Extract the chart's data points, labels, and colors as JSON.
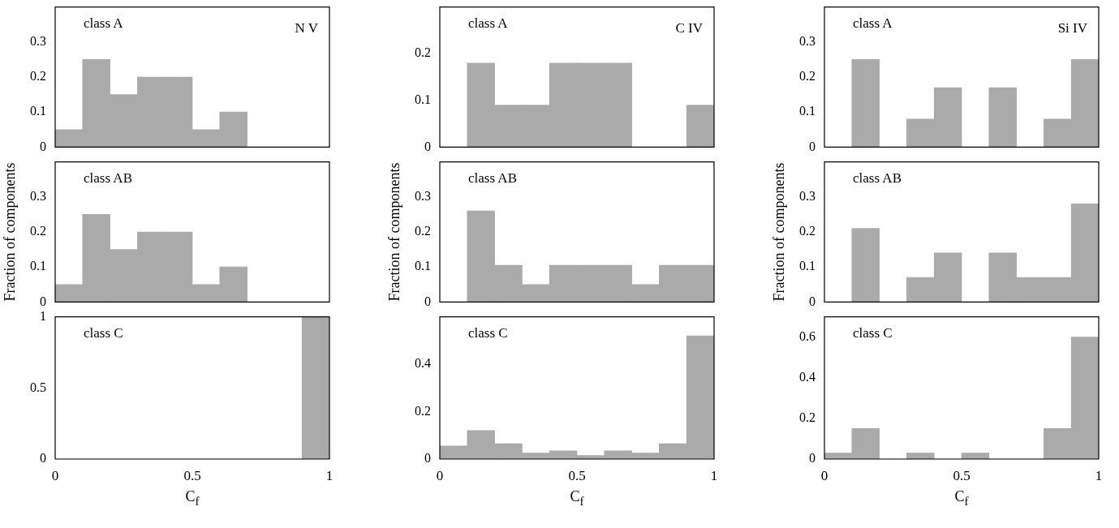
{
  "chart_data": [
    {
      "type": "histogram",
      "bins": [
        0,
        0.1,
        0.2,
        0.3,
        0.4,
        0.5,
        0.6,
        0.7,
        0.8,
        0.9,
        1
      ],
      "values": [
        0.05,
        0.25,
        0.15,
        0.2,
        0.2,
        0.05,
        0.1,
        0,
        0,
        0
      ],
      "color": "#aaaaaa",
      "xlim": [
        0,
        1
      ],
      "xticks": [
        0,
        0.5,
        1
      ],
      "ylim": [
        0,
        0.4
      ],
      "yticks": [
        0,
        0.1,
        0.2,
        0.3
      ],
      "tick_labels": "y",
      "annotations": [
        "class A",
        "N V"
      ]
    },
    {
      "type": "histogram",
      "bins": [
        0,
        0.1,
        0.2,
        0.3,
        0.4,
        0.5,
        0.6,
        0.7,
        0.8,
        0.9,
        1
      ],
      "values": [
        0,
        0.18,
        0.09,
        0.09,
        0.18,
        0.18,
        0.18,
        0,
        0,
        0.09
      ],
      "color": "#aaaaaa",
      "xlim": [
        0,
        1
      ],
      "xticks": [
        0,
        0.5,
        1
      ],
      "ylim": [
        0,
        0.3
      ],
      "yticks": [
        0,
        0.1,
        0.2
      ],
      "tick_labels": "y",
      "annotations": [
        "class A",
        "C IV"
      ]
    },
    {
      "type": "histogram",
      "bins": [
        0,
        0.1,
        0.2,
        0.3,
        0.4,
        0.5,
        0.6,
        0.7,
        0.8,
        0.9,
        1
      ],
      "values": [
        0,
        0.25,
        0,
        0.08,
        0.17,
        0,
        0.17,
        0,
        0.08,
        0.25
      ],
      "color": "#aaaaaa",
      "xlim": [
        0,
        1
      ],
      "xticks": [
        0,
        0.5,
        1
      ],
      "ylim": [
        0,
        0.4
      ],
      "yticks": [
        0,
        0.1,
        0.2,
        0.3
      ],
      "tick_labels": "y",
      "annotations": [
        "class A",
        "Si IV"
      ]
    },
    {
      "type": "histogram",
      "bins": [
        0,
        0.1,
        0.2,
        0.3,
        0.4,
        0.5,
        0.6,
        0.7,
        0.8,
        0.9,
        1
      ],
      "values": [
        0.05,
        0.25,
        0.15,
        0.2,
        0.2,
        0.05,
        0.1,
        0,
        0,
        0
      ],
      "color": "#aaaaaa",
      "xlim": [
        0,
        1
      ],
      "xticks": [
        0,
        0.5,
        1
      ],
      "ylim": [
        0,
        0.4
      ],
      "yticks": [
        0,
        0.1,
        0.2,
        0.3
      ],
      "tick_labels": "y",
      "ylabel": "Fraction of components",
      "annotations": [
        "class AB"
      ]
    },
    {
      "type": "histogram",
      "bins": [
        0,
        0.1,
        0.2,
        0.3,
        0.4,
        0.5,
        0.6,
        0.7,
        0.8,
        0.9,
        1
      ],
      "values": [
        0,
        0.26,
        0.105,
        0.05,
        0.105,
        0.105,
        0.105,
        0.05,
        0.105,
        0.105
      ],
      "color": "#aaaaaa",
      "xlim": [
        0,
        1
      ],
      "xticks": [
        0,
        0.5,
        1
      ],
      "ylim": [
        0,
        0.4
      ],
      "yticks": [
        0,
        0.1,
        0.2,
        0.3
      ],
      "tick_labels": "y",
      "ylabel": "Fraction of components",
      "annotations": [
        "class AB"
      ]
    },
    {
      "type": "histogram",
      "bins": [
        0,
        0.1,
        0.2,
        0.3,
        0.4,
        0.5,
        0.6,
        0.7,
        0.8,
        0.9,
        1
      ],
      "values": [
        0,
        0.21,
        0,
        0.07,
        0.14,
        0,
        0.14,
        0.07,
        0.07,
        0.28
      ],
      "color": "#aaaaaa",
      "xlim": [
        0,
        1
      ],
      "xticks": [
        0,
        0.5,
        1
      ],
      "ylim": [
        0,
        0.4
      ],
      "yticks": [
        0,
        0.1,
        0.2,
        0.3
      ],
      "tick_labels": "y",
      "ylabel": "Fraction of components",
      "annotations": [
        "class AB"
      ]
    },
    {
      "type": "histogram",
      "bins": [
        0,
        0.1,
        0.2,
        0.3,
        0.4,
        0.5,
        0.6,
        0.7,
        0.8,
        0.9,
        1
      ],
      "values": [
        0,
        0,
        0,
        0,
        0,
        0,
        0,
        0,
        0,
        1
      ],
      "color": "#aaaaaa",
      "xlim": [
        0,
        1
      ],
      "xticks": [
        0,
        0.5,
        1
      ],
      "ylim": [
        0,
        1
      ],
      "yticks": [
        0,
        0.5,
        1
      ],
      "xlabel": "C$_{f}$",
      "annotations": [
        "class C"
      ]
    },
    {
      "type": "histogram",
      "bins": [
        0,
        0.1,
        0.2,
        0.3,
        0.4,
        0.5,
        0.6,
        0.7,
        0.8,
        0.9,
        1
      ],
      "values": [
        0.055,
        0.12,
        0.065,
        0.025,
        0.035,
        0.015,
        0.035,
        0.025,
        0.065,
        0.52
      ],
      "color": "#aaaaaa",
      "xlim": [
        0,
        1
      ],
      "xticks": [
        0,
        0.5,
        1
      ],
      "ylim": [
        0,
        0.6
      ],
      "yticks": [
        0,
        0.2,
        0.4
      ],
      "xlabel": "C$_{f}$",
      "annotations": [
        "class C"
      ]
    },
    {
      "type": "histogram",
      "bins": [
        0,
        0.1,
        0.2,
        0.3,
        0.4,
        0.5,
        0.6,
        0.7,
        0.8,
        0.9,
        1
      ],
      "values": [
        0.03,
        0.15,
        0,
        0.03,
        0,
        0.03,
        0,
        0,
        0.15,
        0.6
      ],
      "color": "#aaaaaa",
      "xlim": [
        0,
        1
      ],
      "xticks": [
        0,
        0.5,
        1
      ],
      "ylim": [
        0,
        0.7
      ],
      "yticks": [
        0,
        0.2,
        0.4,
        0.6
      ],
      "xlabel": "C$_{f}$",
      "annotations": [
        "class C"
      ]
    }
  ]
}
